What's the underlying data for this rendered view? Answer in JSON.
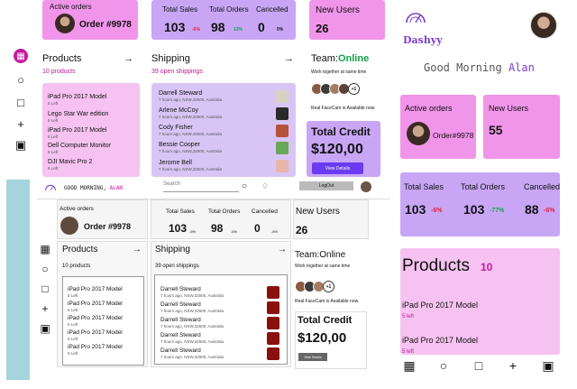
{
  "desktop": {
    "active_orders": {
      "label": "Active orders",
      "order": "Order #9978"
    },
    "kpis": [
      {
        "label": "Total Sales",
        "value": "103",
        "pct": "-6%"
      },
      {
        "label": "Total Orders",
        "value": "98",
        "pct": "13%"
      },
      {
        "label": "Cancelled",
        "value": "0",
        "pct": "0%"
      }
    ],
    "new_users": {
      "label": "New Users",
      "value": "26"
    },
    "products": {
      "title": "Products",
      "subtitle": "10 products",
      "items": [
        {
          "name": "iPad Pro 2017 Model",
          "stock": "5 Left"
        },
        {
          "name": "Lego Star War edition",
          "stock": "5 Left"
        },
        {
          "name": "iPad Pro 2017 Model",
          "stock": "5 Left"
        },
        {
          "name": "Dell Computer Monitor",
          "stock": "5 Left"
        },
        {
          "name": "DJI Mavic Pro 2",
          "stock": "5 Left"
        }
      ]
    },
    "shipping": {
      "title": "Shipping",
      "subtitle": "39 open shippings",
      "items": [
        {
          "name": "Darrell Steward",
          "meta": "7 hours ago, NSW,32500, Australia"
        },
        {
          "name": "Arlene McCoy",
          "meta": "7 hours ago, NSW,32500, Australia"
        },
        {
          "name": "Cody Fisher",
          "meta": "7 hours ago, NSW,32500, Australia"
        },
        {
          "name": "Bessie Cooper",
          "meta": "7 hours ago, NSW,32500, Australia"
        },
        {
          "name": "Jerome Bell",
          "meta": "7 hours ago, NSW,32500, Australia"
        }
      ]
    },
    "team": {
      "title": "Team:",
      "status": "Online",
      "subtitle": "Work together at same time",
      "more": "+1",
      "facecam": "Real FaceCam is Available now."
    },
    "credit": {
      "title": "Total Credit",
      "value": "$120,00",
      "button": "View Details"
    }
  },
  "mobile": {
    "brand": "Dashyy",
    "greeting": "Good Morning",
    "name": "Alan",
    "active_orders": {
      "label": "Active orders",
      "order": "Order#9978"
    },
    "new_users": {
      "label": "New Users",
      "value": "55"
    },
    "kpis": [
      {
        "label": "Total Sales",
        "value": "103",
        "pct": "-6%"
      },
      {
        "label": "Total Orders",
        "value": "103",
        "pct": "-77%"
      },
      {
        "label": "Cancelled",
        "value": "88",
        "pct": "-6%"
      }
    ],
    "products": {
      "title": "Products",
      "count": "10",
      "items": [
        {
          "name": "iPad Pro 2017 Model",
          "stock": "5 left"
        },
        {
          "name": "iPad Pro 2017 Model",
          "stock": "5 left"
        }
      ]
    }
  },
  "wireframe": {
    "greeting": "GOOD MORNING,",
    "name": "ALAN",
    "search_placeholder": "Search",
    "logout": "LogOut",
    "active_orders": {
      "label": "Active orders",
      "order": "Order #9978"
    },
    "kpis": [
      {
        "label": "Total Sales",
        "value": "103",
        "pct": "-6%"
      },
      {
        "label": "Total Orders",
        "value": "98",
        "pct": "-6%"
      },
      {
        "label": "Cancelled",
        "value": "0",
        "pct": "-6%"
      }
    ],
    "new_users": {
      "label": "New Users",
      "value": "26"
    },
    "products": {
      "title": "Products",
      "subtitle": "10 products",
      "items": [
        {
          "name": "iPad Pro 2017 Model",
          "stock": "5 Left"
        },
        {
          "name": "iPad Pro 2017 Model",
          "stock": "5 Left"
        },
        {
          "name": "iPad Pro 2017 Model",
          "stock": "5 Left"
        },
        {
          "name": "iPad Pro 2017 Model",
          "stock": "5 Left"
        },
        {
          "name": "iPad Pro 2017 Model",
          "stock": "5 Left"
        }
      ]
    },
    "shipping": {
      "title": "Shipping",
      "subtitle": "39 open shippings",
      "items": [
        {
          "name": "Darrell Steward",
          "meta": "7 hours ago, NSW,32500, Australia"
        },
        {
          "name": "Darrell Steward",
          "meta": "7 hours ago, NSW,32500, Australia"
        },
        {
          "name": "Darrell Steward",
          "meta": "7 hours ago, NSW,32500, Australia"
        },
        {
          "name": "Darrell Steward",
          "meta": "7 hours ago, NSW,32500, Australia"
        },
        {
          "name": "Darrell Steward",
          "meta": "7 hours ago, NSW,32500, Australia"
        }
      ]
    },
    "team": {
      "title": "Team:Online",
      "subtitle": "Work together at same time",
      "more": "+1",
      "facecam": "Real FaceCam is Available now."
    },
    "credit": {
      "title": "Total Credit",
      "value": "$120,00",
      "button": "View Details"
    }
  }
}
